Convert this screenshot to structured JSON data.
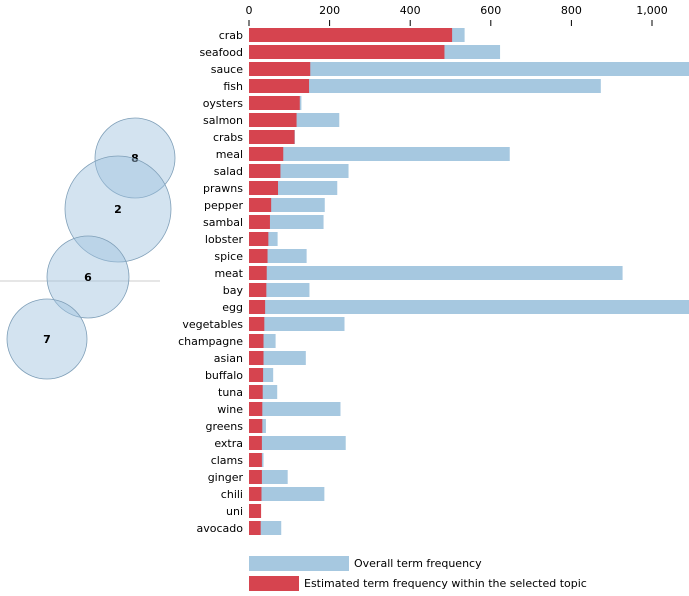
{
  "chart_data": {
    "type": "bar",
    "orientation": "horizontal",
    "bar_mode": "overlay",
    "xlim": [
      0,
      1100
    ],
    "x_ticks": [
      0,
      200,
      400,
      600,
      800,
      1000
    ],
    "x_tick_labels": [
      "0",
      "200",
      "400",
      "600",
      "800",
      "1,000"
    ],
    "categories": [
      "crab",
      "seafood",
      "sauce",
      "fish",
      "oysters",
      "salmon",
      "crabs",
      "meal",
      "salad",
      "prawns",
      "pepper",
      "sambal",
      "lobster",
      "spice",
      "meat",
      "bay",
      "egg",
      "vegetables",
      "champagne",
      "asian",
      "buffalo",
      "tuna",
      "wine",
      "greens",
      "extra",
      "clams",
      "ginger",
      "chili",
      "uni",
      "avocado"
    ],
    "series": [
      {
        "name": "Overall term frequency",
        "color": "#a6c8e0",
        "values": [
          535,
          623,
          1130,
          873,
          130,
          224,
          114,
          647,
          247,
          219,
          188,
          185,
          71,
          143,
          927,
          150,
          1140,
          237,
          66,
          141,
          60,
          70,
          227,
          42,
          240,
          36,
          96,
          187,
          26,
          80
        ]
      },
      {
        "name": "Estimated term frequency within the selected topic",
        "color": "#d6444f",
        "values": [
          504,
          485,
          152,
          149,
          126,
          118,
          113,
          85,
          78,
          72,
          55,
          52,
          48,
          46,
          44,
          43,
          40,
          38,
          36,
          36,
          35,
          34,
          33,
          33,
          32,
          32,
          32,
          31,
          30,
          29
        ]
      }
    ]
  },
  "topic_map": {
    "topics": [
      {
        "label": "8",
        "color": "#9ec0de"
      },
      {
        "label": "2",
        "color": "#9ec0de"
      },
      {
        "label": "6",
        "color": "#9ec0de"
      },
      {
        "label": "7",
        "color": "#9ec0de"
      }
    ]
  },
  "legend": {
    "overall_label": "Overall term frequency",
    "topic_label": "Estimated term frequency within the selected topic"
  }
}
